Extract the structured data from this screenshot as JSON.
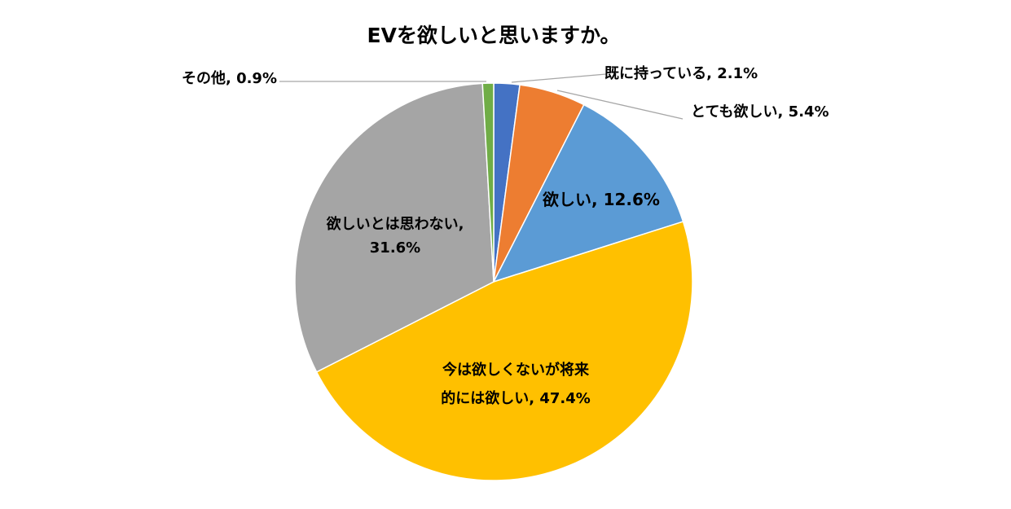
{
  "chart_data": {
    "type": "pie",
    "title": "EVを欲しいと思いますか。",
    "slices": [
      {
        "label": "既に持っている",
        "value": 2.1,
        "value_text": "2.1%",
        "color": "#4472c4",
        "label_lines": [
          "既に持っている, 2.1%"
        ]
      },
      {
        "label": "とても欲しい",
        "value": 5.4,
        "value_text": "5.4%",
        "color": "#ed7d31",
        "label_lines": [
          "とても欲しい, 5.4%"
        ]
      },
      {
        "label": "欲しい",
        "value": 12.6,
        "value_text": "12.6%",
        "color": "#5b9bd5",
        "label_lines": [
          "欲しい, 12.6%"
        ]
      },
      {
        "label": "今は欲しくないが将来的には欲しい",
        "value": 47.4,
        "value_text": "47.4%",
        "color": "#ffc000",
        "label_lines": [
          "今は欲しくないが将来",
          "的には欲しい, 47.4%"
        ]
      },
      {
        "label": "欲しいとは思わない",
        "value": 31.6,
        "value_text": "31.6%",
        "color": "#a5a5a5",
        "label_lines": [
          "欲しいとは思わない,",
          "31.6%"
        ]
      },
      {
        "label": "その他",
        "value": 0.9,
        "value_text": "0.9%",
        "color": "#70ad47",
        "label_lines": [
          "その他, 0.9%"
        ]
      }
    ],
    "legend": "none",
    "start_angle": "12 o'clock",
    "direction": "clockwise"
  }
}
